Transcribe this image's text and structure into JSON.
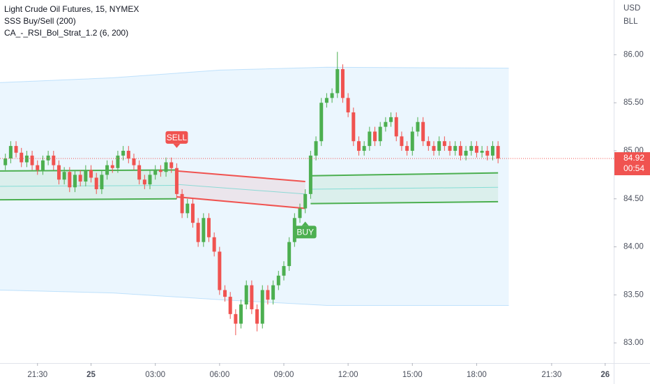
{
  "chart_data": {
    "type": "candlestick",
    "title": "Light Crude Oil Futures, 15, NYMEX",
    "indicators": [
      "SSS Buy/Sell (200)",
      "CA_-_RSI_Bol_Strat_1.2 (6, 200)"
    ],
    "currency": "USD",
    "unit": "BLL",
    "grid": false,
    "colors": {
      "up": "#4caf50",
      "down": "#f05350"
    },
    "x": [
      20,
      20.25,
      20.5,
      20.75,
      21,
      21.25,
      21.5,
      21.75,
      22,
      22.25,
      22.5,
      22.75,
      23,
      23.25,
      23.5,
      23.75,
      24,
      24.25,
      24.5,
      24.75,
      25,
      25.25,
      25.5,
      25.75,
      26,
      26.25,
      26.5,
      26.75,
      27,
      27.25,
      27.5,
      27.75,
      28,
      28.25,
      28.5,
      28.75,
      29,
      29.25,
      29.5,
      29.75,
      30,
      30.25,
      30.5,
      30.75,
      31,
      31.25,
      31.5,
      31.75,
      32,
      32.25,
      32.5,
      32.75,
      33,
      33.25,
      33.5,
      33.75,
      34,
      34.25,
      34.5,
      34.75,
      35,
      35.25,
      35.5,
      35.75,
      36,
      36.25,
      36.5,
      36.75,
      37,
      37.25,
      37.5,
      37.75,
      38,
      38.25,
      38.5,
      38.75,
      39,
      39.25,
      39.5,
      39.75,
      40,
      40.25,
      40.5,
      40.75,
      41,
      41.25,
      41.5,
      41.75,
      42,
      42.25,
      42.5,
      42.75,
      43
    ],
    "open": [
      84.85,
      84.92,
      85.05,
      84.98,
      84.88,
      84.95,
      84.85,
      84.8,
      84.9,
      84.95,
      84.85,
      84.7,
      84.78,
      84.62,
      84.75,
      84.68,
      84.8,
      84.72,
      84.6,
      84.75,
      84.85,
      84.82,
      84.95,
      85.0,
      84.92,
      84.85,
      84.7,
      84.65,
      84.75,
      84.8,
      84.78,
      84.88,
      84.82,
      84.55,
      84.35,
      84.45,
      84.25,
      84.05,
      84.3,
      84.1,
      83.95,
      83.55,
      83.48,
      83.3,
      83.2,
      83.4,
      83.6,
      83.35,
      83.2,
      83.55,
      83.45,
      83.6,
      83.7,
      83.8,
      84.05,
      84.3,
      84.4,
      84.55,
      84.95,
      85.1,
      85.5,
      85.55,
      85.6,
      85.85,
      85.55,
      85.4,
      85.1,
      85.0,
      85.05,
      85.2,
      85.1,
      85.25,
      85.3,
      85.35,
      85.15,
      85.05,
      85.0,
      85.2,
      85.3,
      85.1,
      85.05,
      85.0,
      85.1,
      85.05,
      85.0,
      85.05,
      84.95,
      85.0,
      85.05,
      84.98,
      85.0,
      84.95,
      85.05
    ],
    "high": [
      84.97,
      85.1,
      85.1,
      85.03,
      85.0,
      85.0,
      84.9,
      84.95,
      85.0,
      85.0,
      84.9,
      84.83,
      84.83,
      84.8,
      84.8,
      84.85,
      84.85,
      84.77,
      84.8,
      84.9,
      84.9,
      85.0,
      85.05,
      85.05,
      84.97,
      84.9,
      84.75,
      84.8,
      84.85,
      84.85,
      84.93,
      84.93,
      84.87,
      84.6,
      84.5,
      84.5,
      84.3,
      84.35,
      84.35,
      84.15,
      84.0,
      83.6,
      83.53,
      83.35,
      83.45,
      83.65,
      83.65,
      83.4,
      83.6,
      83.6,
      83.65,
      83.75,
      83.85,
      84.1,
      84.35,
      84.45,
      84.6,
      85.0,
      85.15,
      85.55,
      85.6,
      85.65,
      86.03,
      85.9,
      85.6,
      85.45,
      85.15,
      85.1,
      85.25,
      85.25,
      85.3,
      85.35,
      85.4,
      85.4,
      85.2,
      85.1,
      85.25,
      85.35,
      85.35,
      85.15,
      85.1,
      85.15,
      85.15,
      85.1,
      85.1,
      85.1,
      85.05,
      85.1,
      85.1,
      85.05,
      85.05,
      85.1,
      85.1
    ],
    "low": [
      84.8,
      84.87,
      84.93,
      84.83,
      84.83,
      84.8,
      84.75,
      84.75,
      84.85,
      84.8,
      84.65,
      84.65,
      84.57,
      84.57,
      84.63,
      84.63,
      84.67,
      84.55,
      84.55,
      84.7,
      84.77,
      84.77,
      84.9,
      84.87,
      84.8,
      84.65,
      84.6,
      84.6,
      84.7,
      84.73,
      84.73,
      84.77,
      84.5,
      84.3,
      84.3,
      84.2,
      84.0,
      84.0,
      84.05,
      83.9,
      83.5,
      83.43,
      83.25,
      83.08,
      83.15,
      83.35,
      83.3,
      83.12,
      83.15,
      83.4,
      83.4,
      83.55,
      83.65,
      83.75,
      84.0,
      84.25,
      84.35,
      84.5,
      84.9,
      85.05,
      85.45,
      85.5,
      85.55,
      85.5,
      85.35,
      85.05,
      84.95,
      84.95,
      85.0,
      85.05,
      85.05,
      85.2,
      85.25,
      85.1,
      85.0,
      84.95,
      84.95,
      85.15,
      85.05,
      85.0,
      84.95,
      84.95,
      85.0,
      84.95,
      84.95,
      84.9,
      84.9,
      84.95,
      84.93,
      84.93,
      84.9,
      84.9,
      84.87
    ],
    "close": [
      84.92,
      85.05,
      84.98,
      84.88,
      84.95,
      84.85,
      84.8,
      84.9,
      84.95,
      84.85,
      84.7,
      84.78,
      84.62,
      84.75,
      84.68,
      84.8,
      84.72,
      84.6,
      84.75,
      84.85,
      84.82,
      84.95,
      85.0,
      84.92,
      84.85,
      84.7,
      84.65,
      84.75,
      84.8,
      84.78,
      84.88,
      84.82,
      84.55,
      84.35,
      84.45,
      84.25,
      84.05,
      84.3,
      84.1,
      83.95,
      83.55,
      83.48,
      83.3,
      83.2,
      83.4,
      83.6,
      83.35,
      83.2,
      83.55,
      83.45,
      83.6,
      83.7,
      83.8,
      84.05,
      84.3,
      84.4,
      84.55,
      84.95,
      85.1,
      85.5,
      85.55,
      85.6,
      85.85,
      85.55,
      85.4,
      85.1,
      85.0,
      85.05,
      85.2,
      85.1,
      85.25,
      85.3,
      85.35,
      85.15,
      85.05,
      85.0,
      85.2,
      85.3,
      85.1,
      85.05,
      85.0,
      85.1,
      85.05,
      85.0,
      85.05,
      84.95,
      85.0,
      85.05,
      84.98,
      85.0,
      84.95,
      85.05,
      84.92
    ],
    "envelope": {
      "color": "#2196f3",
      "x": [
        19.75,
        25,
        30,
        35,
        43.5
      ],
      "upper": [
        85.71,
        85.76,
        85.84,
        85.87,
        85.86
      ],
      "lower": [
        83.55,
        83.52,
        83.45,
        83.39,
        83.39
      ]
    },
    "bands": [
      {
        "color": "#4caf50",
        "x": [
          19.75,
          28
        ],
        "upper": [
          84.79,
          84.8
        ],
        "mid": [
          84.63,
          84.64
        ],
        "lower": [
          84.49,
          84.5
        ]
      },
      {
        "color": "#f05350",
        "x": [
          28,
          34
        ],
        "upper": [
          84.79,
          84.68
        ],
        "mid": [
          84.65,
          84.55
        ],
        "lower": [
          84.52,
          84.4
        ]
      },
      {
        "color": "#4caf50",
        "x": [
          34.25,
          43
        ],
        "upper": [
          84.74,
          84.77
        ],
        "mid": [
          84.6,
          84.62
        ],
        "lower": [
          84.45,
          84.47
        ]
      }
    ],
    "annotations": [
      {
        "text": "SELL",
        "x": 28,
        "color": "#f05350"
      },
      {
        "text": "BUY",
        "x": 34,
        "color": "#4caf50"
      }
    ],
    "last_price": 84.92,
    "countdown": "00:54",
    "ylim": [
      82.79,
      86.57
    ],
    "yticks": [
      {
        "value": 83,
        "label": "83.00"
      },
      {
        "value": 83.5,
        "label": "83.50"
      },
      {
        "value": 84,
        "label": "84.00"
      },
      {
        "value": 84.5,
        "label": "84.50"
      },
      {
        "value": 85,
        "label": "85.00"
      },
      {
        "value": 85.5,
        "label": "85.50"
      },
      {
        "value": 86,
        "label": "86.00"
      }
    ],
    "xlim": [
      19.75,
      48.4
    ],
    "xticks": [
      {
        "value": 21.5,
        "label": "21:30"
      },
      {
        "value": 24,
        "label": "25"
      },
      {
        "value": 27,
        "label": "03:00"
      },
      {
        "value": 30,
        "label": "06:00"
      },
      {
        "value": 33,
        "label": "09:00"
      },
      {
        "value": 36,
        "label": "12:00"
      },
      {
        "value": 39,
        "label": "15:00"
      },
      {
        "value": 42,
        "label": "18:00"
      },
      {
        "value": 45.5,
        "label": "21:30"
      },
      {
        "value": 48,
        "label": "26"
      }
    ]
  }
}
